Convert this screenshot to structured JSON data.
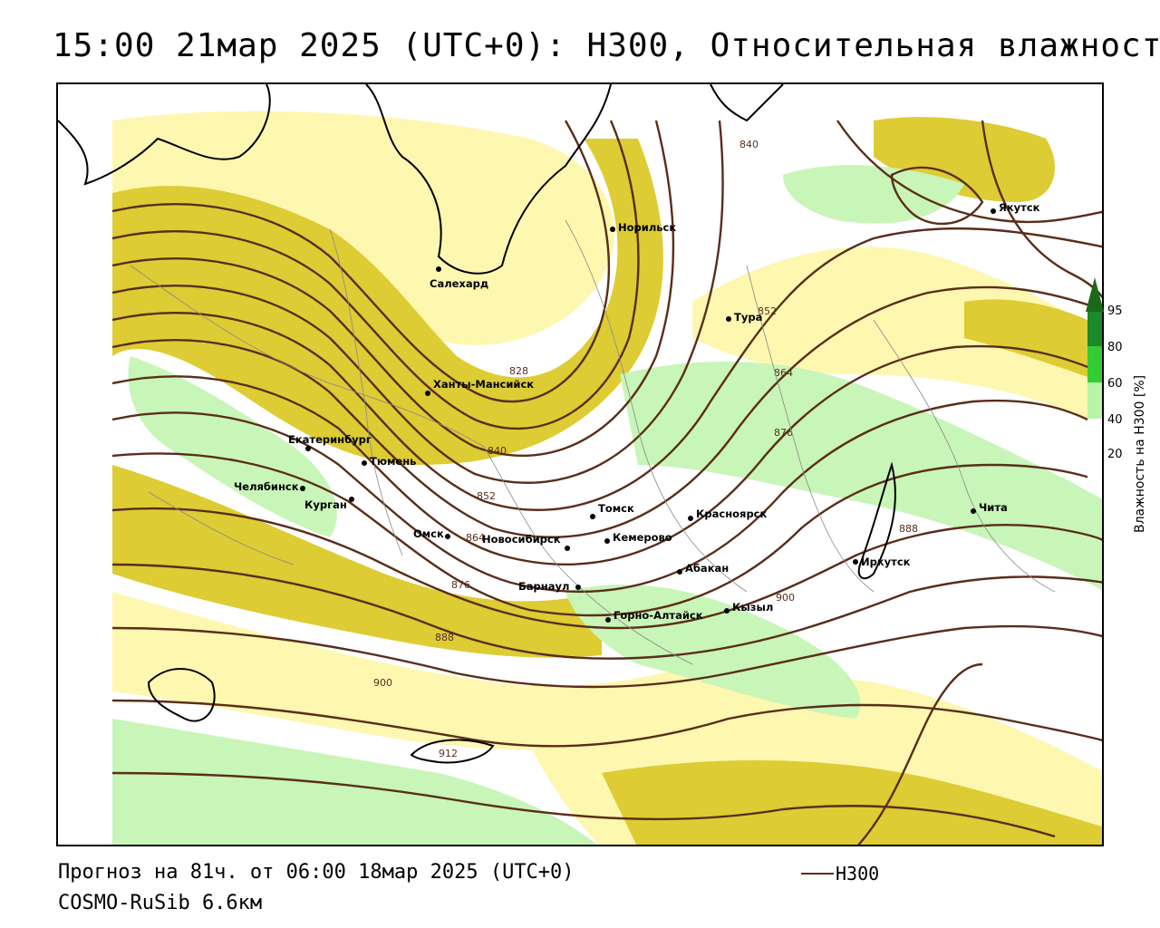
{
  "title": "15:00 21мар 2025 (UTC+0): H300, Относительная влажность",
  "footer": {
    "forecast": "Прогноз на 81ч. от 06:00 18мар 2025 (UTC+0)",
    "model": "COSMO-RuSib 6.6км",
    "legend_label": "H300"
  },
  "colorbar": {
    "title": "Влажность на H300 [%]",
    "ticks": [
      "95",
      "80",
      "60",
      "40",
      "20"
    ],
    "colors": {
      "c95": "#1a8a2a",
      "c80": "#33cc33",
      "c60": "#b8f5a8",
      "c40": "#ffffff",
      "c20": "#ffffff"
    }
  },
  "colors": {
    "dry_fill": "#fdf7b0",
    "mid_fill": "#ddcc33",
    "wet_fill": "#c8f5b8",
    "isohypse": "#5a2d1a",
    "coast": "#000000"
  },
  "cities": [
    {
      "id": "yakutsk",
      "name": "Якутск"
    },
    {
      "id": "norilsk",
      "name": "Норильск"
    },
    {
      "id": "salekhard",
      "name": "Салехард"
    },
    {
      "id": "tura",
      "name": "Тура"
    },
    {
      "id": "khanty",
      "name": "Ханты-Мансийск"
    },
    {
      "id": "ekb",
      "name": "Екатеринбург"
    },
    {
      "id": "tyumen",
      "name": "Тюмень"
    },
    {
      "id": "chelyabinsk",
      "name": "Челябинск"
    },
    {
      "id": "kurgan",
      "name": "Курган"
    },
    {
      "id": "omsk",
      "name": "Омск"
    },
    {
      "id": "novosibirsk",
      "name": "Новосибирск"
    },
    {
      "id": "tomsk",
      "name": "Томск"
    },
    {
      "id": "krasnoyarsk",
      "name": "Красноярск"
    },
    {
      "id": "kemerovo",
      "name": "Кемерово"
    },
    {
      "id": "barnaul",
      "name": "Барнаул"
    },
    {
      "id": "abakan",
      "name": "Абакан"
    },
    {
      "id": "gorno",
      "name": "Горно-Алтайск"
    },
    {
      "id": "kyzyl",
      "name": "Кызыл"
    },
    {
      "id": "irkutsk",
      "name": "Иркутск"
    },
    {
      "id": "chita",
      "name": "Чита"
    }
  ],
  "isohypse_labels": [
    "840",
    "852",
    "864",
    "876",
    "828",
    "840",
    "852",
    "864",
    "876",
    "888",
    "900",
    "912",
    "888",
    "900"
  ]
}
